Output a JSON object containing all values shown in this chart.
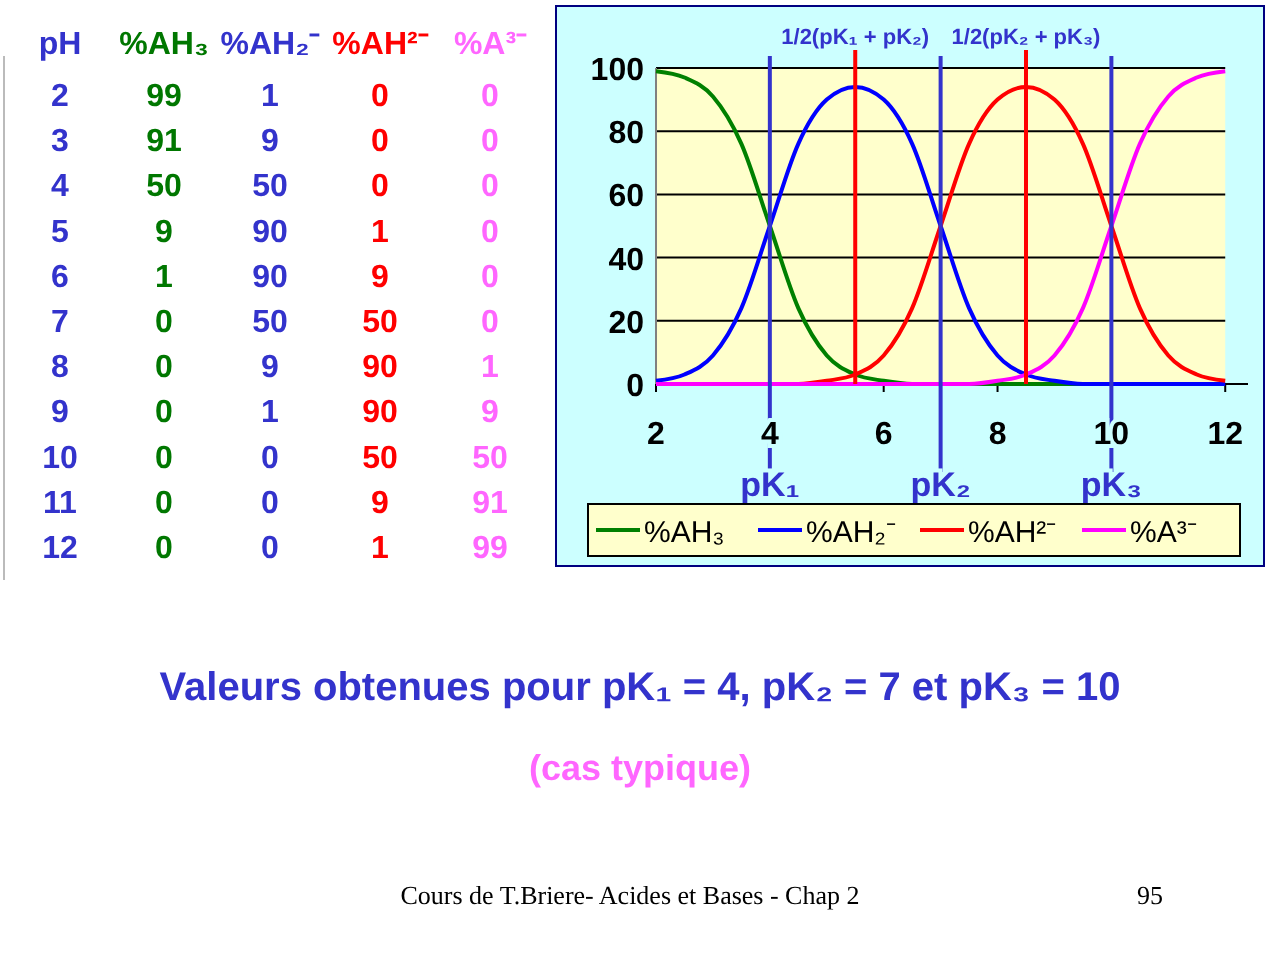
{
  "chart_data": [
    {
      "type": "heatmap",
      "ylabel": "pH",
      "data_labels": true,
      "categories": [
        "%AH₃",
        "%AH₂⁻",
        "%AH²⁻",
        "%A³⁻"
      ],
      "y_categories": [
        "2",
        "3",
        "4",
        "5",
        "6",
        "7",
        "8",
        "9",
        "10",
        "11",
        "12"
      ],
      "cells": [
        [
          99,
          1,
          0,
          0
        ],
        [
          91,
          9,
          0,
          0
        ],
        [
          50,
          50,
          0,
          0
        ],
        [
          9,
          90,
          1,
          0
        ],
        [
          1,
          90,
          9,
          0
        ],
        [
          0,
          50,
          50,
          0
        ],
        [
          0,
          9,
          90,
          1
        ],
        [
          0,
          1,
          90,
          9
        ],
        [
          0,
          0,
          50,
          50
        ],
        [
          0,
          0,
          9,
          91
        ],
        [
          0,
          0,
          1,
          99
        ]
      ]
    },
    {
      "type": "line",
      "title": "Valeurs obtenues pour pK₁ = 4, pK₂ = 7 et pK₃ = 10",
      "subtitle": "(cas typique)",
      "x": [
        2,
        2.5,
        3,
        3.5,
        4,
        4.5,
        5,
        5.5,
        6,
        6.5,
        7,
        7.5,
        8,
        8.5,
        9,
        9.5,
        10,
        10.5,
        11,
        11.5,
        12
      ],
      "series": [
        {
          "name": "%AH₃",
          "color": "#008000",
          "values": [
            99,
            97,
            91,
            76,
            50,
            24,
            9,
            3,
            1,
            0,
            0,
            0,
            0,
            0,
            0,
            0,
            0,
            null,
            null,
            null,
            null
          ]
        },
        {
          "name": "%AH₂⁻",
          "color": "#0000ff",
          "values": [
            1,
            3,
            9,
            24,
            50,
            76,
            90,
            94,
            90,
            76,
            50,
            24,
            9,
            3,
            1,
            0,
            0,
            0,
            0,
            0,
            0
          ]
        },
        {
          "name": "%AH²⁻",
          "color": "#ff0000",
          "values": [
            null,
            null,
            null,
            null,
            0,
            0,
            1,
            3,
            9,
            24,
            50,
            76,
            90,
            94,
            90,
            76,
            50,
            24,
            9,
            3,
            1
          ]
        },
        {
          "name": "%A³⁻",
          "color": "#ff00ff",
          "values": [
            0,
            0,
            0,
            0,
            0,
            0,
            0,
            0,
            0,
            0,
            0,
            0,
            1,
            3,
            9,
            24,
            50,
            76,
            91,
            97,
            99
          ]
        }
      ],
      "xlim": [
        2,
        12.4
      ],
      "xticks": [
        2,
        4,
        6,
        8,
        10,
        12
      ],
      "ylim": [
        0,
        100
      ],
      "yticks": [
        0,
        20,
        40,
        60,
        80,
        100
      ],
      "grid": "y",
      "legend": "bottom",
      "marker": "none",
      "line_style": "solid",
      "ref_lines": [
        {
          "axis": "x",
          "value": 4,
          "label": "pK₁",
          "color": "#3333cc"
        },
        {
          "axis": "x",
          "value": 7,
          "label": "pK₂",
          "color": "#3333cc"
        },
        {
          "axis": "x",
          "value": 10,
          "label": "pK₃",
          "color": "#3333cc"
        },
        {
          "axis": "x",
          "value": 5.5,
          "label": "1/2(pK₁ + pK₂)",
          "color": "#ff0000"
        },
        {
          "axis": "x",
          "value": 8.5,
          "label": "1/2(pK₂ + pK₃)",
          "color": "#ff0000"
        }
      ],
      "annotations": [
        "Cours de T.Briere- Acides et Bases - Chap 2",
        "95"
      ]
    }
  ]
}
